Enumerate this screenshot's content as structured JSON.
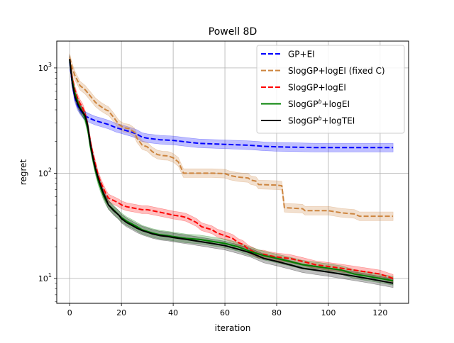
{
  "chart_data": {
    "type": "line",
    "title": "Powell 8D",
    "xlabel": "iteration",
    "ylabel": "regret",
    "xlim": [
      -5,
      131
    ],
    "ylim": [
      5.8,
      1800
    ],
    "yscale": "log",
    "grid": true,
    "legend_position": "top-right",
    "x_ticks": [
      0,
      20,
      40,
      60,
      80,
      100,
      120
    ],
    "y_ticks": [
      {
        "value": 10,
        "label_base": "10",
        "label_exp": "1"
      },
      {
        "value": 100,
        "label_base": "10",
        "label_exp": "2"
      },
      {
        "value": 1000,
        "label_base": "10",
        "label_exp": "3"
      }
    ],
    "series": [
      {
        "name": "GP+EI",
        "legend_base": "GP+EI",
        "legend_sup": "",
        "legend_suffix": "",
        "color": "#0000ff",
        "dash": "dashed",
        "points": [
          [
            0,
            1150
          ],
          [
            1,
            700
          ],
          [
            2,
            520
          ],
          [
            3,
            440
          ],
          [
            4,
            400
          ],
          [
            5,
            370
          ],
          [
            6,
            350
          ],
          [
            8,
            330
          ],
          [
            10,
            315
          ],
          [
            12,
            305
          ],
          [
            15,
            290
          ],
          [
            18,
            270
          ],
          [
            20,
            262
          ],
          [
            24,
            245
          ],
          [
            26,
            235
          ],
          [
            28,
            220
          ],
          [
            30,
            215
          ],
          [
            35,
            208
          ],
          [
            40,
            205
          ],
          [
            45,
            198
          ],
          [
            50,
            192
          ],
          [
            55,
            190
          ],
          [
            60,
            188
          ],
          [
            65,
            186
          ],
          [
            70,
            184
          ],
          [
            75,
            180
          ],
          [
            80,
            178
          ],
          [
            85,
            177
          ],
          [
            90,
            176
          ],
          [
            95,
            175
          ],
          [
            100,
            175
          ],
          [
            110,
            175
          ],
          [
            120,
            175
          ],
          [
            125,
            175
          ]
        ],
        "band": 0.1
      },
      {
        "name": "SlogGP+logEI (fixed C)",
        "legend_base": "SlogGP+logEI (fixed C)",
        "legend_sup": "",
        "legend_suffix": "",
        "color": "#cd853f",
        "dash": "dashed",
        "points": [
          [
            0,
            1250
          ],
          [
            1,
            1000
          ],
          [
            2,
            850
          ],
          [
            3,
            760
          ],
          [
            4,
            680
          ],
          [
            6,
            620
          ],
          [
            8,
            540
          ],
          [
            10,
            470
          ],
          [
            12,
            430
          ],
          [
            14,
            400
          ],
          [
            15,
            390
          ],
          [
            17,
            340
          ],
          [
            19,
            290
          ],
          [
            21,
            270
          ],
          [
            23,
            265
          ],
          [
            24,
            255
          ],
          [
            25,
            245
          ],
          [
            26,
            215
          ],
          [
            27,
            200
          ],
          [
            28,
            185
          ],
          [
            30,
            178
          ],
          [
            32,
            160
          ],
          [
            34,
            150
          ],
          [
            36,
            147
          ],
          [
            38,
            146
          ],
          [
            40,
            140
          ],
          [
            42,
            128
          ],
          [
            44,
            100
          ],
          [
            50,
            100
          ],
          [
            55,
            100
          ],
          [
            60,
            99
          ],
          [
            62,
            95
          ],
          [
            65,
            92
          ],
          [
            69,
            90
          ],
          [
            70,
            86
          ],
          [
            72,
            84
          ],
          [
            73,
            78
          ],
          [
            80,
            77
          ],
          [
            82,
            76
          ],
          [
            83,
            47
          ],
          [
            90,
            46
          ],
          [
            91,
            44
          ],
          [
            100,
            44
          ],
          [
            105,
            42
          ],
          [
            110,
            41
          ],
          [
            112,
            39
          ],
          [
            120,
            39
          ],
          [
            125,
            39
          ]
        ],
        "band": 0.1
      },
      {
        "name": "SlogGP+logEI",
        "legend_base": "SlogGP+logEI",
        "legend_sup": "",
        "legend_suffix": "",
        "color": "#ff0000",
        "dash": "dashed",
        "points": [
          [
            0,
            1200
          ],
          [
            1,
            800
          ],
          [
            2,
            620
          ],
          [
            3,
            520
          ],
          [
            4,
            460
          ],
          [
            5,
            420
          ],
          [
            6,
            360
          ],
          [
            7,
            280
          ],
          [
            8,
            200
          ],
          [
            9,
            150
          ],
          [
            10,
            120
          ],
          [
            11,
            95
          ],
          [
            12,
            82
          ],
          [
            13,
            72
          ],
          [
            14,
            64
          ],
          [
            15,
            58
          ],
          [
            17,
            55
          ],
          [
            19,
            52
          ],
          [
            20,
            50
          ],
          [
            22,
            48
          ],
          [
            24,
            47
          ],
          [
            26,
            46
          ],
          [
            28,
            45
          ],
          [
            30,
            45
          ],
          [
            32,
            44
          ],
          [
            34,
            43
          ],
          [
            36,
            42
          ],
          [
            38,
            41
          ],
          [
            40,
            40
          ],
          [
            43,
            39
          ],
          [
            45,
            38
          ],
          [
            47,
            36
          ],
          [
            49,
            34
          ],
          [
            51,
            31
          ],
          [
            53,
            30
          ],
          [
            55,
            29
          ],
          [
            57,
            27
          ],
          [
            59,
            26
          ],
          [
            61,
            25
          ],
          [
            63,
            24
          ],
          [
            65,
            22
          ],
          [
            67,
            21
          ],
          [
            69,
            19
          ],
          [
            71,
            18
          ],
          [
            73,
            17
          ],
          [
            75,
            17
          ],
          [
            77,
            16.5
          ],
          [
            80,
            16
          ],
          [
            85,
            15.5
          ],
          [
            90,
            14.5
          ],
          [
            95,
            13.5
          ],
          [
            100,
            13
          ],
          [
            105,
            12.5
          ],
          [
            110,
            12
          ],
          [
            115,
            11.5
          ],
          [
            120,
            11
          ],
          [
            125,
            10
          ]
        ],
        "band": 0.09
      },
      {
        "name": "SlogGP^b+logEI",
        "legend_base": "SlogGP",
        "legend_sup": "b",
        "legend_suffix": "+logEI",
        "color": "#008000",
        "dash": "solid",
        "points": [
          [
            0,
            1180
          ],
          [
            1,
            760
          ],
          [
            2,
            580
          ],
          [
            3,
            480
          ],
          [
            4,
            420
          ],
          [
            5,
            380
          ],
          [
            6,
            330
          ],
          [
            7,
            260
          ],
          [
            8,
            180
          ],
          [
            9,
            135
          ],
          [
            10,
            105
          ],
          [
            11,
            85
          ],
          [
            12,
            72
          ],
          [
            13,
            62
          ],
          [
            14,
            55
          ],
          [
            15,
            50
          ],
          [
            17,
            45
          ],
          [
            19,
            40
          ],
          [
            20,
            38
          ],
          [
            22,
            35
          ],
          [
            24,
            33
          ],
          [
            26,
            31
          ],
          [
            28,
            29
          ],
          [
            30,
            28
          ],
          [
            32,
            27
          ],
          [
            35,
            26
          ],
          [
            38,
            25.5
          ],
          [
            40,
            25
          ],
          [
            45,
            24
          ],
          [
            50,
            23.5
          ],
          [
            55,
            22.5
          ],
          [
            60,
            21.5
          ],
          [
            65,
            20
          ],
          [
            70,
            18
          ],
          [
            75,
            16.5
          ],
          [
            80,
            15.5
          ],
          [
            85,
            14.5
          ],
          [
            90,
            13.5
          ],
          [
            95,
            13
          ],
          [
            100,
            12.5
          ],
          [
            105,
            12
          ],
          [
            110,
            11
          ],
          [
            115,
            10.5
          ],
          [
            120,
            10
          ],
          [
            125,
            9.5
          ]
        ],
        "band": 0.1
      },
      {
        "name": "SlogGP^b+logTEI",
        "legend_base": "SlogGP",
        "legend_sup": "b",
        "legend_suffix": "+logTEI",
        "color": "#000000",
        "dash": "solid",
        "points": [
          [
            0,
            1220
          ],
          [
            1,
            720
          ],
          [
            2,
            540
          ],
          [
            3,
            460
          ],
          [
            4,
            410
          ],
          [
            5,
            380
          ],
          [
            6,
            350
          ],
          [
            7,
            280
          ],
          [
            8,
            190
          ],
          [
            9,
            140
          ],
          [
            10,
            110
          ],
          [
            11,
            90
          ],
          [
            12,
            76
          ],
          [
            13,
            65
          ],
          [
            14,
            57
          ],
          [
            15,
            50
          ],
          [
            17,
            44
          ],
          [
            19,
            40
          ],
          [
            20,
            37
          ],
          [
            22,
            34
          ],
          [
            24,
            32
          ],
          [
            26,
            30
          ],
          [
            28,
            28.5
          ],
          [
            30,
            27.5
          ],
          [
            32,
            26.5
          ],
          [
            35,
            25.5
          ],
          [
            38,
            25
          ],
          [
            40,
            24.5
          ],
          [
            45,
            23.5
          ],
          [
            50,
            22.5
          ],
          [
            55,
            21.5
          ],
          [
            60,
            20.5
          ],
          [
            65,
            19
          ],
          [
            70,
            17.5
          ],
          [
            75,
            15.5
          ],
          [
            80,
            14.5
          ],
          [
            85,
            13.5
          ],
          [
            90,
            12.5
          ],
          [
            95,
            12
          ],
          [
            100,
            11.5
          ],
          [
            105,
            11
          ],
          [
            110,
            10.5
          ],
          [
            115,
            10
          ],
          [
            120,
            9.5
          ],
          [
            125,
            9
          ]
        ],
        "band": 0.1
      }
    ]
  }
}
